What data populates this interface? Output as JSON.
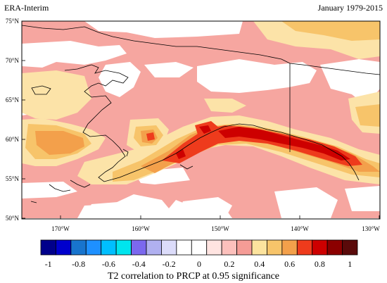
{
  "header": {
    "left_title": "ERA-Interim",
    "right_title": "January 1979-2015"
  },
  "axes": {
    "lat_labels": [
      "75°N",
      "70°N",
      "65°N",
      "60°N",
      "55°N",
      "50°N"
    ],
    "lon_labels": [
      "170°W",
      "160°W",
      "150°W",
      "140°W",
      "130°W"
    ]
  },
  "colorbar": {
    "labels": [
      "-1",
      "-0.8",
      "-0.6",
      "-0.4",
      "-0.2",
      "0",
      "0.2",
      "0.4",
      "0.6",
      "0.8",
      "1"
    ],
    "colors": [
      "#00008b",
      "#0000cd",
      "#1874cd",
      "#1e90ff",
      "#00bfff",
      "#00e5ee",
      "#7b68ee",
      "#b0b0f0",
      "#dcdcfa",
      "#ffffff",
      "#ffffff",
      "#ffe4e1",
      "#fcc0bc",
      "#f59c96",
      "#fce39e",
      "#f7c46a",
      "#f3a04b",
      "#ee3b1c",
      "#cd0000",
      "#8b0000",
      "#5a0a0a"
    ],
    "caption": "T2 correlation to PRCP at 0.95 significance"
  },
  "map": {
    "lat_range": [
      50,
      75
    ],
    "lon_range": [
      -175,
      -130
    ],
    "fill_colors": {
      "pink": "#f6a6a0",
      "cream": "#fce3a8",
      "light_orange": "#f7c46a",
      "orange": "#f3a04b",
      "red": "#ee3b1c",
      "dark_red": "#cd0000"
    }
  }
}
